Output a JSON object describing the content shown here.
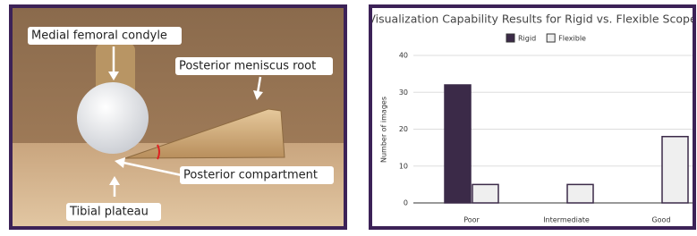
{
  "photo": {
    "labels": [
      "Medial femoral condyle",
      "Posterior meniscus root",
      "Posterior compartment",
      "Tibial plateau"
    ]
  },
  "chart_data": {
    "type": "bar",
    "title": "Visualization Capability Results for Rigid vs. Flexible Scope",
    "y_label": "Number of images",
    "categories": [
      "Poor",
      "Intermediate",
      "Good"
    ],
    "series": [
      {
        "name": "Rigid",
        "color": "#3b2a48",
        "values": [
          32,
          0,
          0
        ]
      },
      {
        "name": "Flexible",
        "color": "#efefef",
        "values": [
          5,
          5,
          18
        ]
      }
    ],
    "ylim": [
      0,
      40
    ],
    "yticks": [
      0,
      10,
      20,
      30,
      40
    ],
    "grid": true
  }
}
